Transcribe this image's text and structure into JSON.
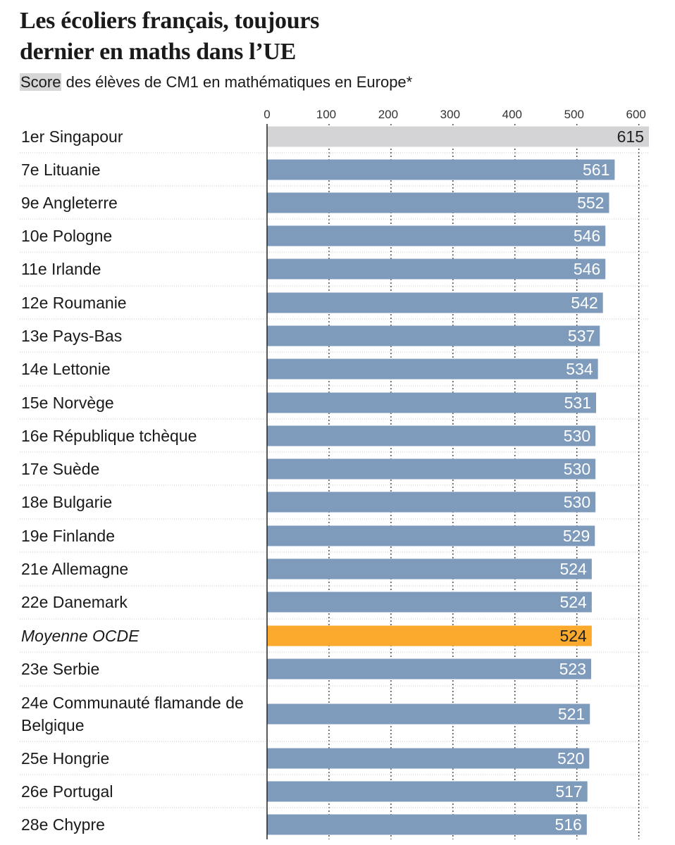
{
  "title": {
    "line1": "Les écoliers français, toujours",
    "line2": "dernier en maths dans l’UE"
  },
  "subtitle": {
    "highlight": "Score",
    "rest": " des élèves de CM1 en mathématiques en Europe*"
  },
  "colors": {
    "bar": "#7f9bbc",
    "highlight_bar": "#fbaa2e",
    "reference_bar": "#d4d4d6",
    "bar_label": "#ffffff",
    "reference_label": "#222222"
  },
  "chart_data": {
    "type": "bar",
    "orientation": "horizontal",
    "xlim": [
      0,
      600
    ],
    "xticks": [
      0,
      100,
      200,
      300,
      400,
      500,
      600
    ],
    "grid": "vertical dotted at each tick",
    "categories": [
      "1er Singapour",
      "7e Lituanie",
      "9e Angleterre",
      "10e Pologne",
      "11e Irlande",
      "12e Roumanie",
      "13e Pays-Bas",
      "14e Lettonie",
      "15e Norvège",
      "16e République tchèque",
      "17e Suède",
      "18e Bulgarie",
      "19e Finlande",
      "21e Allemagne",
      "22e Danemark",
      "Moyenne OCDE",
      "23e Serbie",
      "24e Communauté flamande de Belgique",
      "25e Hongrie",
      "26e Portugal",
      "28e Chypre"
    ],
    "values": [
      615,
      561,
      552,
      546,
      546,
      542,
      537,
      534,
      531,
      530,
      530,
      530,
      529,
      524,
      524,
      524,
      523,
      521,
      520,
      517,
      516
    ],
    "reference_category": "1er Singapour",
    "highlight_category": "Moyenne OCDE",
    "italic_categories": [
      "Moyenne OCDE"
    ]
  }
}
